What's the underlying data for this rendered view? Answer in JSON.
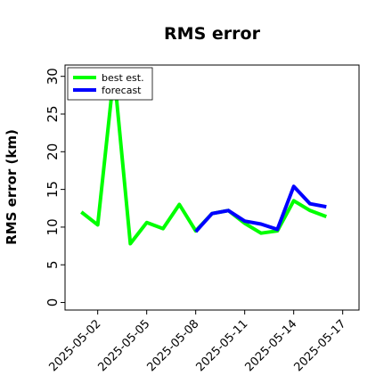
{
  "chart_data": {
    "type": "line",
    "title": "RMS error",
    "xlabel": "",
    "ylabel": "RMS error (km)",
    "x_start": "2025-05-01",
    "xlim": [
      "2025-04-30",
      "2025-05-18"
    ],
    "ylim": [
      -1,
      31.5
    ],
    "yticks": [
      0,
      5,
      10,
      15,
      20,
      25,
      30
    ],
    "xticks": [
      "2025-05-02",
      "2025-05-05",
      "2025-05-08",
      "2025-05-11",
      "2025-05-14",
      "2025-05-17"
    ],
    "highlighted_xtick": "2025-05-08",
    "highlight_color": "#228b22",
    "grid": false,
    "legend_position": "top-left",
    "series": [
      {
        "name": "best est.",
        "color": "#00ff00",
        "x": [
          "2025-05-01",
          "2025-05-02",
          "2025-05-03",
          "2025-05-04",
          "2025-05-05",
          "2025-05-06",
          "2025-05-07",
          "2025-05-08",
          "2025-05-09",
          "2025-05-10",
          "2025-05-11",
          "2025-05-12",
          "2025-05-13",
          "2025-05-14",
          "2025-05-15",
          "2025-05-16"
        ],
        "values": [
          12.0,
          10.3,
          30.5,
          7.8,
          10.6,
          9.8,
          13.0,
          9.5,
          11.8,
          12.2,
          10.5,
          9.2,
          9.5,
          13.5,
          12.2,
          11.4
        ]
      },
      {
        "name": "forecast",
        "color": "#0000ff",
        "x": [
          "2025-05-08",
          "2025-05-09",
          "2025-05-10",
          "2025-05-11",
          "2025-05-12",
          "2025-05-13",
          "2025-05-14",
          "2025-05-15",
          "2025-05-16"
        ],
        "values": [
          9.4,
          11.8,
          12.2,
          10.8,
          10.4,
          9.7,
          15.4,
          13.1,
          12.7
        ]
      }
    ]
  }
}
